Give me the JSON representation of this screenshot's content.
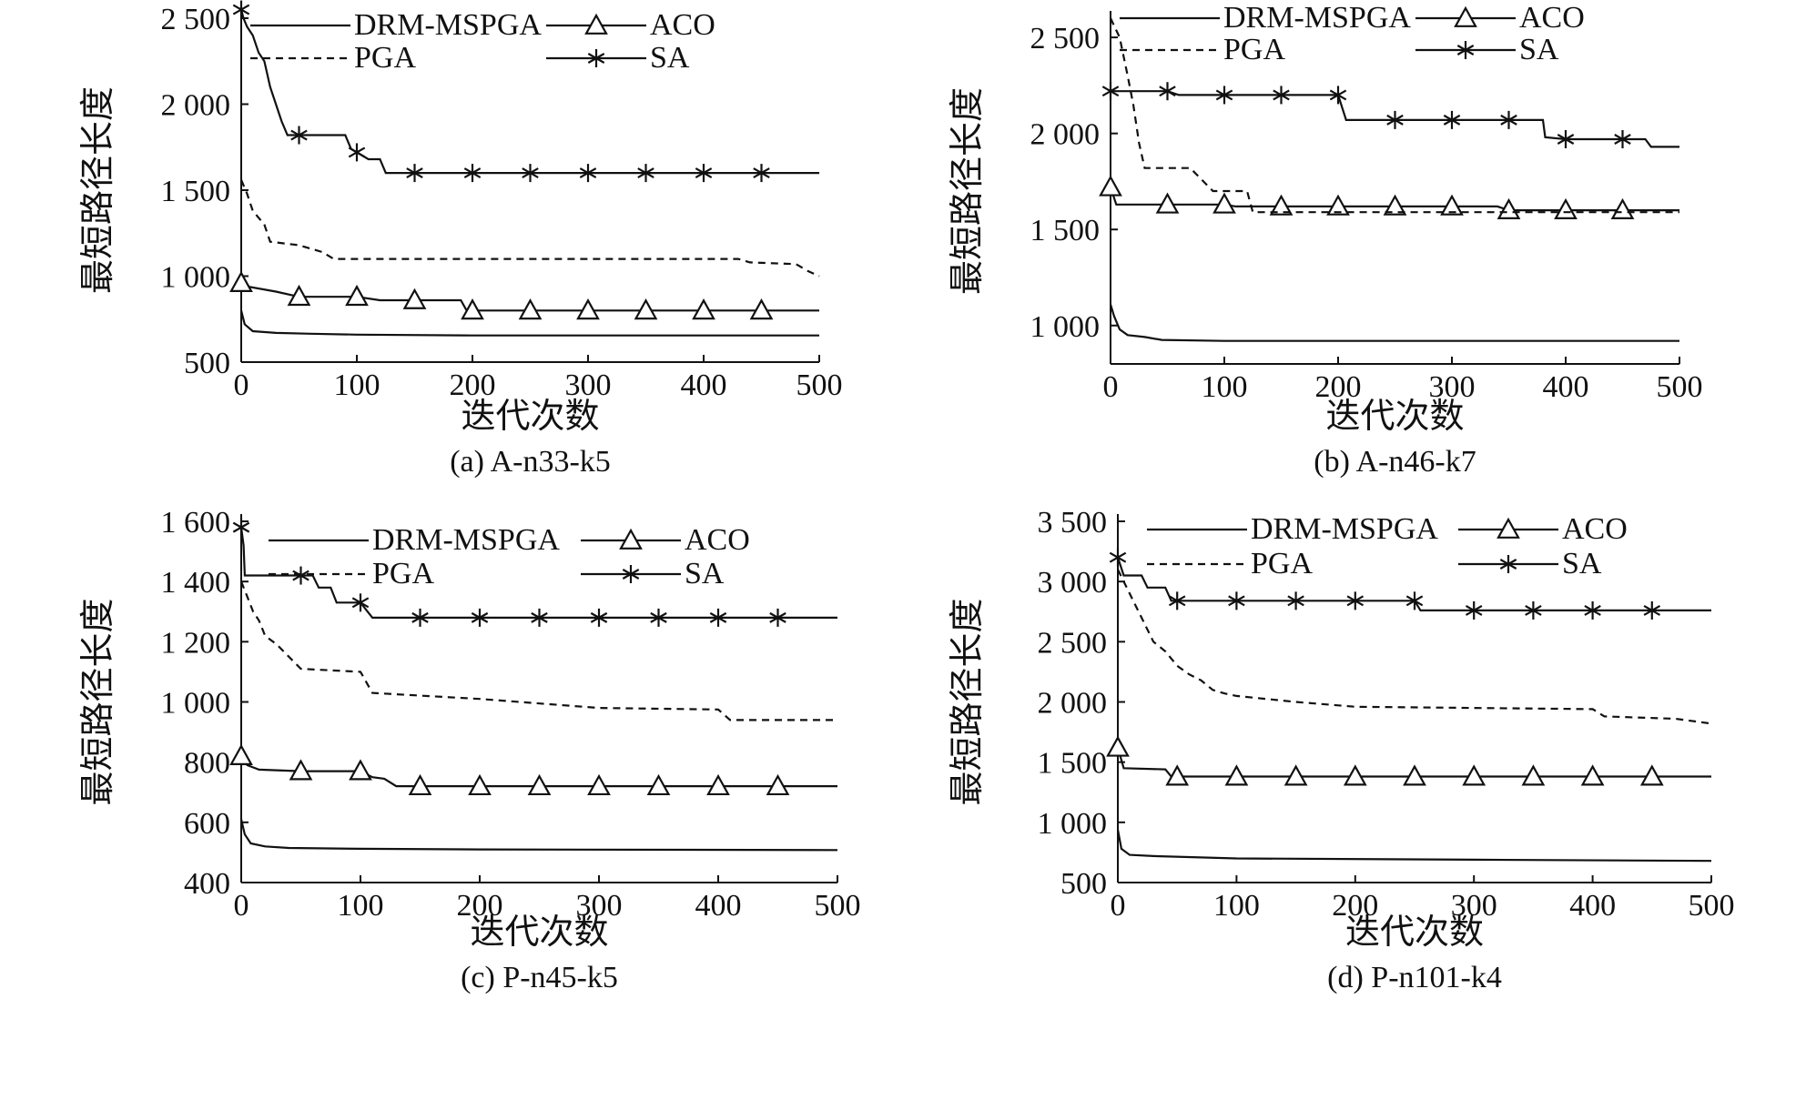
{
  "chart_data": [
    {
      "type": "line",
      "caption": "(a) A-n33-k5",
      "xlabel": "迭代次数",
      "ylabel": "最短路径长度",
      "xlim": [
        0,
        500
      ],
      "ylim": [
        500,
        2500
      ],
      "xticks": [
        {
          "v": 0,
          "label": "0"
        },
        {
          "v": 100,
          "label": "100"
        },
        {
          "v": 200,
          "label": "200"
        },
        {
          "v": 300,
          "label": "300"
        },
        {
          "v": 400,
          "label": "400"
        },
        {
          "v": 500,
          "label": "500"
        }
      ],
      "yticks": [
        {
          "v": 500,
          "label": "500"
        },
        {
          "v": 1000,
          "label": "1 000"
        },
        {
          "v": 1500,
          "label": "1 500"
        },
        {
          "v": 2000,
          "label": "2 000"
        },
        {
          "v": 2500,
          "label": "2 500"
        }
      ],
      "series": [
        {
          "name": "DRM-MSPGA",
          "style": "solid",
          "marker": "none",
          "points": [
            [
              0,
              800
            ],
            [
              3,
              720
            ],
            [
              10,
              680
            ],
            [
              30,
              670
            ],
            [
              60,
              665
            ],
            [
              100,
              660
            ],
            [
              200,
              655
            ],
            [
              500,
              655
            ]
          ]
        },
        {
          "name": "ACO",
          "style": "solid",
          "marker": "triangle",
          "points": [
            [
              0,
              960
            ],
            [
              5,
              940
            ],
            [
              30,
              910
            ],
            [
              50,
              880
            ],
            [
              100,
              880
            ],
            [
              120,
              860
            ],
            [
              190,
              860
            ],
            [
              195,
              800
            ],
            [
              500,
              800
            ]
          ]
        },
        {
          "name": "PGA",
          "style": "dashed",
          "marker": "none",
          "points": [
            [
              0,
              1560
            ],
            [
              5,
              1480
            ],
            [
              10,
              1380
            ],
            [
              20,
              1300
            ],
            [
              25,
              1200
            ],
            [
              50,
              1180
            ],
            [
              70,
              1140
            ],
            [
              80,
              1100
            ],
            [
              350,
              1100
            ],
            [
              430,
              1100
            ],
            [
              440,
              1080
            ],
            [
              480,
              1070
            ],
            [
              490,
              1030
            ],
            [
              500,
              1000
            ]
          ]
        },
        {
          "name": "SA",
          "style": "solid",
          "marker": "star",
          "points": [
            [
              0,
              2550
            ],
            [
              2,
              2500
            ],
            [
              5,
              2450
            ],
            [
              10,
              2400
            ],
            [
              15,
              2300
            ],
            [
              20,
              2250
            ],
            [
              25,
              2100
            ],
            [
              30,
              2000
            ],
            [
              35,
              1900
            ],
            [
              40,
              1820
            ],
            [
              90,
              1820
            ],
            [
              95,
              1740
            ],
            [
              110,
              1680
            ],
            [
              120,
              1680
            ],
            [
              125,
              1600
            ],
            [
              500,
              1600
            ]
          ]
        }
      ],
      "legend": [
        "DRM-MSPGA",
        "ACO",
        "PGA",
        "SA"
      ]
    },
    {
      "type": "line",
      "caption": "(b) A-n46-k7",
      "xlabel": "迭代次数",
      "ylabel": "最短路径长度",
      "xlim": [
        0,
        500
      ],
      "ylim": [
        800,
        2600
      ],
      "xticks": [
        {
          "v": 0,
          "label": "0"
        },
        {
          "v": 100,
          "label": "100"
        },
        {
          "v": 200,
          "label": "200"
        },
        {
          "v": 300,
          "label": "300"
        },
        {
          "v": 400,
          "label": "400"
        },
        {
          "v": 500,
          "label": "500"
        }
      ],
      "yticks": [
        {
          "v": 1000,
          "label": "1 000"
        },
        {
          "v": 1500,
          "label": "1 500"
        },
        {
          "v": 2000,
          "label": "2 000"
        },
        {
          "v": 2500,
          "label": "2 500"
        }
      ],
      "series": [
        {
          "name": "DRM-MSPGA",
          "style": "solid",
          "marker": "none",
          "points": [
            [
              0,
              1110
            ],
            [
              3,
              1050
            ],
            [
              8,
              980
            ],
            [
              15,
              950
            ],
            [
              30,
              940
            ],
            [
              45,
              925
            ],
            [
              100,
              920
            ],
            [
              500,
              920
            ]
          ]
        },
        {
          "name": "ACO",
          "style": "solid",
          "marker": "triangle",
          "points": [
            [
              0,
              1720
            ],
            [
              5,
              1630
            ],
            [
              100,
              1630
            ],
            [
              110,
              1620
            ],
            [
              340,
              1620
            ],
            [
              350,
              1600
            ],
            [
              500,
              1600
            ]
          ]
        },
        {
          "name": "PGA",
          "style": "dashed",
          "marker": "none",
          "points": [
            [
              0,
              2600
            ],
            [
              8,
              2500
            ],
            [
              15,
              2300
            ],
            [
              20,
              2150
            ],
            [
              25,
              1950
            ],
            [
              30,
              1820
            ],
            [
              70,
              1820
            ],
            [
              90,
              1700
            ],
            [
              120,
              1700
            ],
            [
              125,
              1590
            ],
            [
              500,
              1590
            ]
          ]
        },
        {
          "name": "SA",
          "style": "solid",
          "marker": "star",
          "points": [
            [
              0,
              2220
            ],
            [
              50,
              2220
            ],
            [
              60,
              2200
            ],
            [
              200,
              2200
            ],
            [
              207,
              2070
            ],
            [
              380,
              2070
            ],
            [
              382,
              1980
            ],
            [
              400,
              1970
            ],
            [
              470,
              1970
            ],
            [
              475,
              1930
            ],
            [
              500,
              1930
            ]
          ]
        }
      ],
      "legend": [
        "DRM-MSPGA",
        "ACO",
        "PGA",
        "SA"
      ]
    },
    {
      "type": "line",
      "caption": "(c) P-n45-k5",
      "xlabel": "迭代次数",
      "ylabel": "最短路径长度",
      "xlim": [
        0,
        500
      ],
      "ylim": [
        400,
        1600
      ],
      "xticks": [
        {
          "v": 0,
          "label": "0"
        },
        {
          "v": 100,
          "label": "100"
        },
        {
          "v": 200,
          "label": "200"
        },
        {
          "v": 300,
          "label": "300"
        },
        {
          "v": 400,
          "label": "400"
        },
        {
          "v": 500,
          "label": "500"
        }
      ],
      "yticks": [
        {
          "v": 400,
          "label": "400"
        },
        {
          "v": 600,
          "label": "600"
        },
        {
          "v": 800,
          "label": "800"
        },
        {
          "v": 1000,
          "label": "1 000"
        },
        {
          "v": 1200,
          "label": "1 200"
        },
        {
          "v": 1400,
          "label": "1 400"
        },
        {
          "v": 1600,
          "label": "1 600"
        }
      ],
      "series": [
        {
          "name": "DRM-MSPGA",
          "style": "solid",
          "marker": "none",
          "points": [
            [
              0,
              610
            ],
            [
              3,
              560
            ],
            [
              8,
              530
            ],
            [
              20,
              520
            ],
            [
              40,
              515
            ],
            [
              100,
              512
            ],
            [
              200,
              510
            ],
            [
              500,
              508
            ]
          ]
        },
        {
          "name": "ACO",
          "style": "solid",
          "marker": "triangle",
          "points": [
            [
              0,
              820
            ],
            [
              5,
              790
            ],
            [
              15,
              775
            ],
            [
              50,
              770
            ],
            [
              100,
              770
            ],
            [
              110,
              750
            ],
            [
              120,
              745
            ],
            [
              130,
              720
            ],
            [
              500,
              720
            ]
          ]
        },
        {
          "name": "PGA",
          "style": "dashed",
          "marker": "none",
          "points": [
            [
              0,
              1400
            ],
            [
              5,
              1350
            ],
            [
              10,
              1300
            ],
            [
              15,
              1270
            ],
            [
              20,
              1220
            ],
            [
              30,
              1190
            ],
            [
              40,
              1150
            ],
            [
              50,
              1110
            ],
            [
              100,
              1100
            ],
            [
              110,
              1030
            ],
            [
              200,
              1010
            ],
            [
              300,
              980
            ],
            [
              400,
              975
            ],
            [
              410,
              940
            ],
            [
              500,
              940
            ]
          ]
        },
        {
          "name": "SA",
          "style": "solid",
          "marker": "star",
          "points": [
            [
              0,
              1580
            ],
            [
              2,
              1520
            ],
            [
              3,
              1420
            ],
            [
              60,
              1420
            ],
            [
              65,
              1380
            ],
            [
              75,
              1380
            ],
            [
              80,
              1330
            ],
            [
              100,
              1330
            ],
            [
              110,
              1280
            ],
            [
              500,
              1280
            ]
          ]
        }
      ],
      "legend": [
        "DRM-MSPGA",
        "ACO",
        "PGA",
        "SA"
      ]
    },
    {
      "type": "line",
      "caption": "(d) P-n101-k4",
      "xlabel": "迭代次数",
      "ylabel": "最短路径长度",
      "xlim": [
        0,
        500
      ],
      "ylim": [
        500,
        3500
      ],
      "xticks": [
        {
          "v": 0,
          "label": "0"
        },
        {
          "v": 100,
          "label": "100"
        },
        {
          "v": 200,
          "label": "200"
        },
        {
          "v": 300,
          "label": "300"
        },
        {
          "v": 400,
          "label": "400"
        },
        {
          "v": 500,
          "label": "500"
        }
      ],
      "yticks": [
        {
          "v": 500,
          "label": "500"
        },
        {
          "v": 1000,
          "label": "1 000"
        },
        {
          "v": 1500,
          "label": "1 500"
        },
        {
          "v": 2000,
          "label": "2 000"
        },
        {
          "v": 2500,
          "label": "2 500"
        },
        {
          "v": 3000,
          "label": "3 000"
        },
        {
          "v": 3500,
          "label": "3 500"
        }
      ],
      "series": [
        {
          "name": "DRM-MSPGA",
          "style": "solid",
          "marker": "none",
          "points": [
            [
              0,
              940
            ],
            [
              3,
              780
            ],
            [
              10,
              730
            ],
            [
              30,
              720
            ],
            [
              100,
              700
            ],
            [
              300,
              690
            ],
            [
              500,
              680
            ]
          ]
        },
        {
          "name": "ACO",
          "style": "solid",
          "marker": "triangle",
          "points": [
            [
              0,
              1620
            ],
            [
              5,
              1450
            ],
            [
              40,
              1440
            ],
            [
              45,
              1380
            ],
            [
              500,
              1380
            ]
          ]
        },
        {
          "name": "PGA",
          "style": "dashed",
          "marker": "none",
          "points": [
            [
              0,
              3100
            ],
            [
              10,
              2900
            ],
            [
              20,
              2700
            ],
            [
              30,
              2500
            ],
            [
              40,
              2420
            ],
            [
              50,
              2300
            ],
            [
              60,
              2230
            ],
            [
              70,
              2180
            ],
            [
              80,
              2100
            ],
            [
              90,
              2070
            ],
            [
              100,
              2050
            ],
            [
              150,
              2000
            ],
            [
              200,
              1960
            ],
            [
              300,
              1950
            ],
            [
              400,
              1940
            ],
            [
              410,
              1880
            ],
            [
              470,
              1860
            ],
            [
              500,
              1820
            ]
          ]
        },
        {
          "name": "SA",
          "style": "solid",
          "marker": "star",
          "points": [
            [
              0,
              3200
            ],
            [
              5,
              3050
            ],
            [
              20,
              3050
            ],
            [
              25,
              2950
            ],
            [
              40,
              2950
            ],
            [
              45,
              2840
            ],
            [
              250,
              2840
            ],
            [
              255,
              2760
            ],
            [
              500,
              2760
            ]
          ]
        }
      ],
      "legend": [
        "DRM-MSPGA",
        "ACO",
        "PGA",
        "SA"
      ]
    }
  ]
}
